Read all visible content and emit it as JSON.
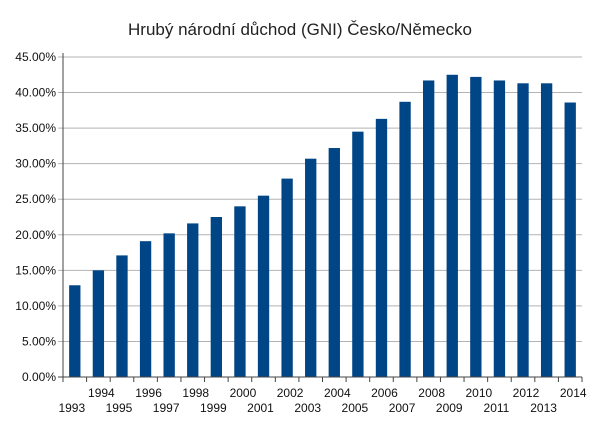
{
  "chart_data": {
    "type": "bar",
    "title": "Hrubý národní důchod (GNI) Česko/Německo",
    "xlabel": "",
    "ylabel": "",
    "ylim": [
      0,
      45
    ],
    "yticks": [
      0,
      5,
      10,
      15,
      20,
      25,
      30,
      35,
      40,
      45
    ],
    "ytick_labels": [
      "0.00%",
      "5.00%",
      "10.00%",
      "15.00%",
      "20.00%",
      "25.00%",
      "30.00%",
      "35.00%",
      "40.00%",
      "45.00%"
    ],
    "grid": true,
    "legend": "none",
    "bar_color": "#004586",
    "categories": [
      "1993",
      "1994",
      "1995",
      "1996",
      "1997",
      "1998",
      "1999",
      "2000",
      "2001",
      "2002",
      "2003",
      "2004",
      "2005",
      "2006",
      "2007",
      "2008",
      "2009",
      "2010",
      "2011",
      "2012",
      "2013",
      "2014"
    ],
    "values": [
      12.9,
      15.0,
      17.1,
      19.1,
      20.2,
      21.6,
      22.5,
      24.0,
      25.5,
      27.9,
      30.7,
      32.2,
      34.5,
      36.3,
      38.7,
      41.7,
      42.5,
      42.2,
      41.7,
      41.3,
      41.3,
      38.6
    ]
  }
}
